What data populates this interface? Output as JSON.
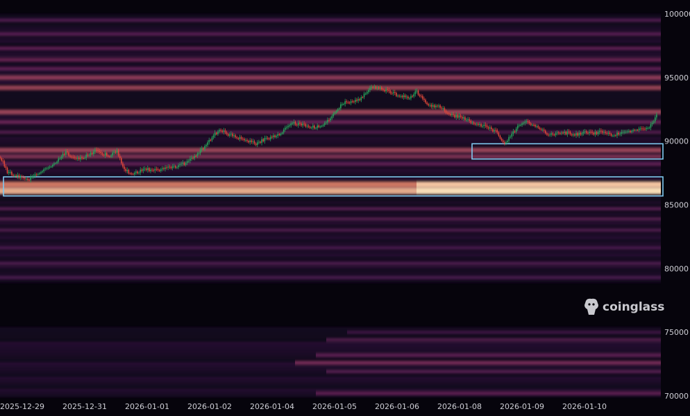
{
  "chart_data": {
    "type": "heatmap",
    "title": "",
    "xlabel": "",
    "ylabel": "",
    "y_ticks": [
      "100000",
      "95000",
      "90000",
      "85000",
      "80000",
      "75000",
      "70000"
    ],
    "y_tick_values": [
      100000,
      95000,
      90000,
      85000,
      80000,
      75000,
      70000
    ],
    "x_ticks": [
      "2025-12-29",
      "2025-12-31",
      "2026-01-01",
      "2026-01-02",
      "2026-01-04",
      "2026-01-05",
      "2026-01-06",
      "2026-01-08",
      "2026-01-09",
      "2026-01-10"
    ],
    "ylim": [
      69800,
      100800
    ],
    "price_series": {
      "name": "",
      "type": "candlestick-line",
      "values": [
        88800,
        87600,
        87300,
        87100,
        87000,
        87400,
        87800,
        88100,
        88600,
        89100,
        88700,
        88600,
        88900,
        89200,
        89000,
        88900,
        89200,
        87700,
        87500,
        87600,
        87800,
        87700,
        87800,
        87900,
        88000,
        88200,
        88500,
        89000,
        89600,
        90300,
        90900,
        90600,
        90400,
        90200,
        90000,
        89800,
        90100,
        90300,
        90500,
        91000,
        91400,
        91300,
        91200,
        91100,
        91300,
        91600,
        92500,
        93000,
        93100,
        93200,
        93800,
        94300,
        94200,
        93900,
        93700,
        93500,
        93400,
        93900,
        93200,
        92700,
        92800,
        92300,
        92000,
        91900,
        91600,
        91400,
        91200,
        91000,
        90700,
        89800,
        90500,
        91300,
        91500,
        91300,
        91000,
        90500,
        90600,
        90700,
        90600,
        90500,
        90700,
        90600,
        90700,
        90600,
        90500,
        90600,
        90800,
        91000,
        90900,
        91200,
        92200
      ]
    },
    "liquidity_bands": [
      {
        "price": 99500,
        "intensity": 0.25
      },
      {
        "price": 98400,
        "intensity": 0.3
      },
      {
        "price": 97300,
        "intensity": 0.35
      },
      {
        "price": 96400,
        "intensity": 0.4
      },
      {
        "price": 95700,
        "intensity": 0.35
      },
      {
        "price": 95000,
        "intensity": 0.55
      },
      {
        "price": 94200,
        "intensity": 0.6
      },
      {
        "price": 92300,
        "intensity": 0.6
      },
      {
        "price": 91500,
        "intensity": 0.4
      },
      {
        "price": 90700,
        "intensity": 0.3
      },
      {
        "price": 89300,
        "intensity": 0.6
      },
      {
        "price": 88800,
        "intensity": 0.5
      },
      {
        "price": 88200,
        "intensity": 0.35
      },
      {
        "price": 86600,
        "intensity": 0.85
      },
      {
        "price": 86100,
        "intensity": 1.0
      },
      {
        "price": 84700,
        "intensity": 0.3
      },
      {
        "price": 83900,
        "intensity": 0.3
      },
      {
        "price": 83000,
        "intensity": 0.25
      },
      {
        "price": 81600,
        "intensity": 0.2
      },
      {
        "price": 80400,
        "intensity": 0.25
      },
      {
        "price": 79300,
        "intensity": 0.2
      },
      {
        "price": 75000,
        "intensity": 0.2
      },
      {
        "price": 74400,
        "intensity": 0.3
      },
      {
        "price": 73200,
        "intensity": 0.35
      },
      {
        "price": 72600,
        "intensity": 0.45
      },
      {
        "price": 71900,
        "intensity": 0.3
      },
      {
        "price": 70200,
        "intensity": 0.35
      }
    ],
    "highlight_zones": [
      {
        "price_low": 88600,
        "price_high": 89800,
        "from": "2026-01-08"
      },
      {
        "price_low": 85700,
        "price_high": 87200,
        "from": "2025-12-29"
      }
    ],
    "colors": {
      "background": "#06040c",
      "low_liquidity": "#3b1a5e",
      "mid_liquidity": "#8e2f6e",
      "high_liquidity": "#f07a60",
      "peak_liquidity": "#ffefc4",
      "candle_up": "#26a65b",
      "candle_down": "#e0483a",
      "highlight_box": "#7fc9f0"
    },
    "grid": false
  },
  "watermark": {
    "text": "coinglass",
    "icon": "coinglass-logo-icon"
  }
}
